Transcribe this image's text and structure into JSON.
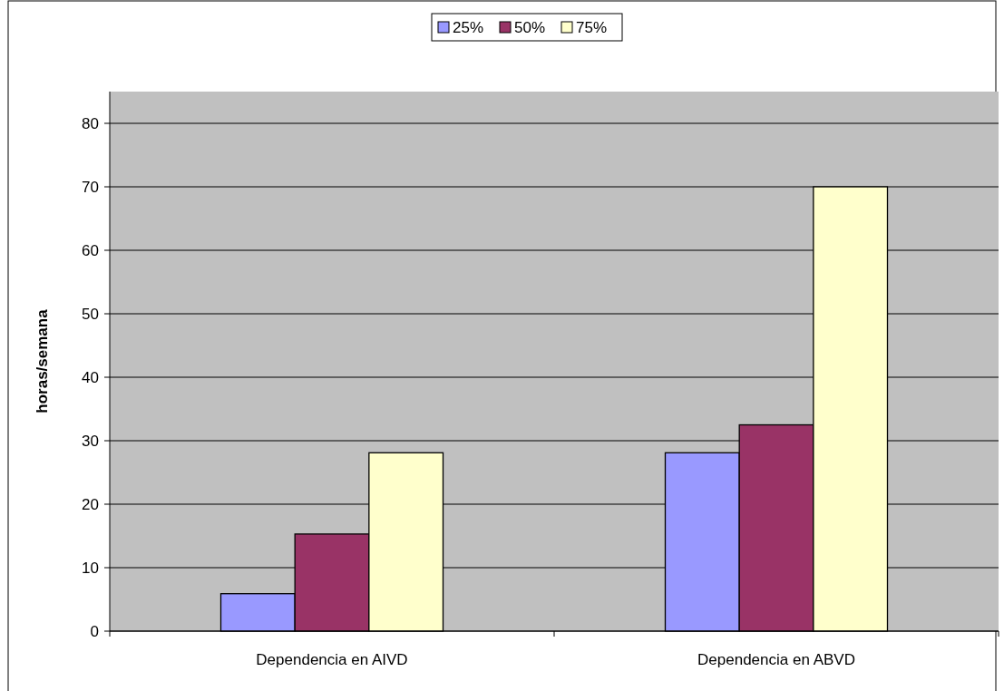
{
  "chart_data": {
    "type": "bar",
    "ylabel": "horas/semana",
    "categories": [
      "Dependencia en AIVD",
      "Dependencia en ABVD"
    ],
    "series": [
      {
        "name": "25%",
        "color": "#9999ff",
        "values": [
          5.9,
          28.1
        ]
      },
      {
        "name": "50%",
        "color": "#993366",
        "values": [
          15.3,
          32.5
        ]
      },
      {
        "name": "75%",
        "color": "#ffffcc",
        "values": [
          28.1,
          70
        ]
      }
    ],
    "ylim": [
      0,
      85
    ],
    "yticks": [
      0,
      10,
      20,
      30,
      40,
      50,
      60,
      70,
      80
    ],
    "grid": "y",
    "legend": "top"
  }
}
